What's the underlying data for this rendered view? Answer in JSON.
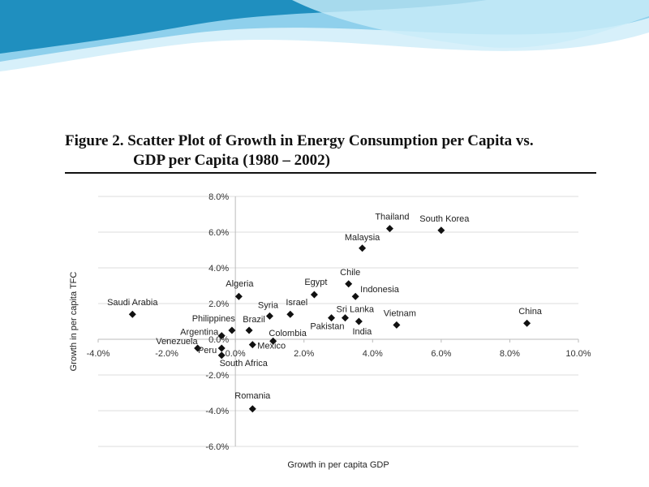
{
  "figure": {
    "title_line1": "Figure 2. Scatter Plot of Growth in Energy Consumption per Capita vs.",
    "title_line2": "GDP per Capita (1980 – 2002)"
  },
  "colors": {
    "header_wave_dark": "#1f8fbf",
    "header_wave_light": "#bfe6f5",
    "marker": "#111111",
    "gridline": "#dddddd",
    "axis": "#bbbbbb"
  },
  "chart_data": {
    "type": "scatter",
    "xlabel": "Growth in per capita GDP",
    "ylabel": "Growth in per capita TFC",
    "xlim": [
      -4.0,
      10.0
    ],
    "ylim": [
      -6.0,
      8.0
    ],
    "x_ticks": [
      -4.0,
      -2.0,
      0.0,
      2.0,
      4.0,
      6.0,
      8.0,
      10.0
    ],
    "y_ticks": [
      -6.0,
      -4.0,
      -2.0,
      0.0,
      2.0,
      4.0,
      6.0,
      8.0
    ],
    "x_tick_labels": [
      "-4.0%",
      "-2.0%",
      "0.0%",
      "2.0%",
      "4.0%",
      "6.0%",
      "8.0%",
      "10.0%"
    ],
    "y_tick_labels": [
      "-6.0%",
      "-4.0%",
      "-2.0%",
      "0.0%",
      "2.0%",
      "4.0%",
      "6.0%",
      "8.0%"
    ],
    "grid": "horizontal",
    "marker": "diamond",
    "points": [
      {
        "label": "Thailand",
        "x": 4.5,
        "y": 6.2
      },
      {
        "label": "South Korea",
        "x": 6.0,
        "y": 6.1
      },
      {
        "label": "Malaysia",
        "x": 3.7,
        "y": 5.1
      },
      {
        "label": "Chile",
        "x": 3.3,
        "y": 3.1
      },
      {
        "label": "Egypt",
        "x": 2.3,
        "y": 2.5
      },
      {
        "label": "Indonesia",
        "x": 3.5,
        "y": 2.4
      },
      {
        "label": "Algeria",
        "x": 0.1,
        "y": 2.4
      },
      {
        "label": "Saudi Arabia",
        "x": -3.0,
        "y": 1.4
      },
      {
        "label": "Israel",
        "x": 1.6,
        "y": 1.4
      },
      {
        "label": "Syria",
        "x": 1.0,
        "y": 1.3
      },
      {
        "label": "Sri Lanka",
        "x": 2.8,
        "y": 1.2
      },
      {
        "label": "Pakistan",
        "x": 3.2,
        "y": 1.2
      },
      {
        "label": "India",
        "x": 3.6,
        "y": 1.0
      },
      {
        "label": "Vietnam",
        "x": 4.7,
        "y": 0.8
      },
      {
        "label": "China",
        "x": 8.5,
        "y": 0.9
      },
      {
        "label": "Brazil",
        "x": 0.4,
        "y": 0.5
      },
      {
        "label": "Philippines",
        "x": -0.1,
        "y": 0.5
      },
      {
        "label": "Argentina",
        "x": -0.4,
        "y": 0.2
      },
      {
        "label": "Colombia",
        "x": 1.1,
        "y": -0.1
      },
      {
        "label": "Mexico",
        "x": 0.5,
        "y": -0.3
      },
      {
        "label": "Venezuela",
        "x": -1.1,
        "y": -0.5
      },
      {
        "label": "Peru",
        "x": -0.4,
        "y": -0.5
      },
      {
        "label": "South Africa",
        "x": -0.4,
        "y": -0.9
      },
      {
        "label": "Romania",
        "x": 0.5,
        "y": -3.9
      }
    ]
  }
}
